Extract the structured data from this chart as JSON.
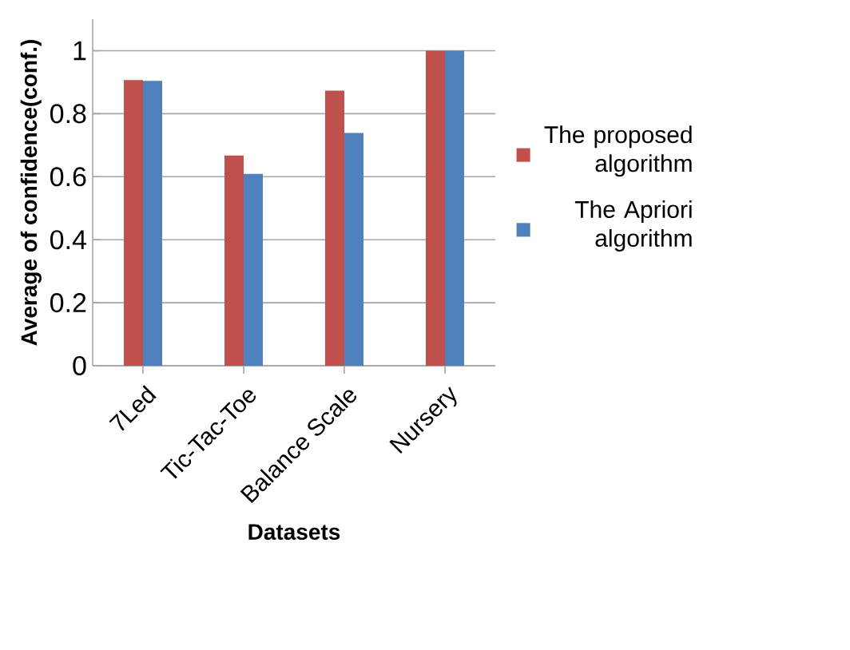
{
  "chart_data": {
    "type": "bar",
    "xlabel": "Datasets",
    "ylabel": "Average of confidence(conf.)",
    "categories": [
      "7Led",
      "Tic-Tac-Toe",
      "Balance Scale",
      "Nursery"
    ],
    "series": [
      {
        "name": "The proposed algorithm",
        "color": "#c0504d",
        "values": [
          0.907,
          0.667,
          0.873,
          1
        ]
      },
      {
        "name": "The Apriori algorithm",
        "color": "#4f81bd",
        "values": [
          0.904,
          0.609,
          0.739,
          1
        ]
      }
    ],
    "ylim": [
      0,
      1.1
    ],
    "yticks": [
      0,
      0.2,
      0.4,
      0.6,
      0.8,
      1
    ],
    "grid": "y",
    "legend": "right"
  }
}
